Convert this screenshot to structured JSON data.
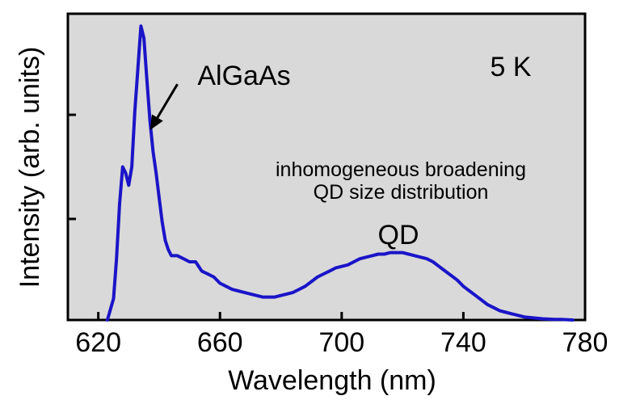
{
  "chart_data": {
    "type": "line",
    "title": "",
    "xlabel": "Wavelength (nm)",
    "ylabel": "Intensity (arb. units)",
    "xlim": [
      610,
      780
    ],
    "ylim": [
      0,
      1.0
    ],
    "x_ticks": [
      620,
      660,
      700,
      740,
      780
    ],
    "x_tick_labels": [
      "620",
      "660",
      "700",
      "740",
      "780"
    ],
    "y_tick_labels_shown": false,
    "grid": false,
    "background_color": "#d9d9d9",
    "series": [
      {
        "color": "#1a14c8",
        "x": [
          623,
          625,
          626,
          627,
          628,
          629,
          630,
          631,
          632,
          633,
          634,
          635,
          636,
          637,
          638,
          639,
          640,
          641,
          642,
          643,
          644,
          646,
          648,
          650,
          652,
          654,
          656,
          658,
          660,
          662,
          664,
          666,
          668,
          670,
          672,
          674,
          676,
          678,
          680,
          682,
          684,
          686,
          688,
          690,
          692,
          694,
          696,
          698,
          700,
          702,
          704,
          706,
          708,
          710,
          712,
          714,
          716,
          718,
          720,
          722,
          724,
          726,
          728,
          730,
          732,
          734,
          736,
          738,
          740,
          742,
          744,
          746,
          748,
          750,
          752,
          754,
          756,
          758,
          760,
          762,
          764,
          766,
          768,
          770,
          772,
          774,
          776
        ],
        "y": [
          0.0,
          0.07,
          0.2,
          0.38,
          0.5,
          0.48,
          0.44,
          0.5,
          0.68,
          0.82,
          0.96,
          0.92,
          0.78,
          0.65,
          0.55,
          0.48,
          0.4,
          0.32,
          0.26,
          0.23,
          0.21,
          0.21,
          0.2,
          0.19,
          0.19,
          0.16,
          0.15,
          0.14,
          0.12,
          0.11,
          0.1,
          0.095,
          0.09,
          0.085,
          0.08,
          0.075,
          0.075,
          0.075,
          0.08,
          0.085,
          0.09,
          0.1,
          0.11,
          0.125,
          0.14,
          0.15,
          0.16,
          0.17,
          0.175,
          0.18,
          0.19,
          0.2,
          0.205,
          0.21,
          0.215,
          0.215,
          0.22,
          0.22,
          0.22,
          0.215,
          0.21,
          0.205,
          0.2,
          0.19,
          0.175,
          0.16,
          0.145,
          0.13,
          0.11,
          0.095,
          0.08,
          0.065,
          0.05,
          0.04,
          0.03,
          0.025,
          0.02,
          0.015,
          0.01,
          0.008,
          0.006,
          0.004,
          0.003,
          0.002,
          0.002,
          0.001,
          0.0
        ]
      }
    ],
    "annotations": [
      {
        "text": "AlGaAs",
        "x": 660,
        "y": 0.88
      },
      {
        "text": "5 K",
        "x": 757,
        "y": 0.9
      },
      {
        "text": "inhomogeneous broadening",
        "x": 728,
        "y": 0.61
      },
      {
        "text": "QD size distribution",
        "x": 728,
        "y": 0.52
      },
      {
        "text": "QD",
        "x": 718,
        "y": 0.3
      }
    ],
    "arrow": {
      "from": [
        646,
        0.77
      ],
      "to": [
        637,
        0.62
      ],
      "color": "#000000"
    }
  }
}
